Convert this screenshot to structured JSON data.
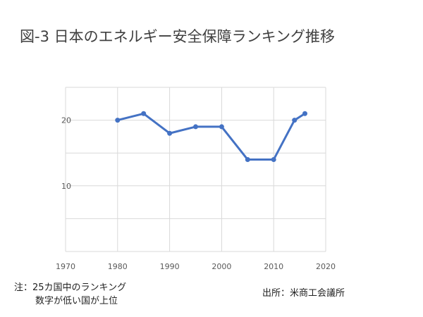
{
  "title": "図-3 日本のエネルギー安全保障ランキング推移",
  "note": {
    "line1": "注：25カ国中のランキング",
    "line2": "数字が低い国が上位"
  },
  "source": "出所：米商工会議所",
  "colors": {
    "series": "#4472c4",
    "grid": "#d9d9d9",
    "text": "#595959"
  },
  "chart_data": {
    "type": "line",
    "title": "",
    "xlabel": "",
    "ylabel": "",
    "xlim": [
      1970,
      2020
    ],
    "ylim": [
      0,
      25
    ],
    "x_ticks": [
      1970,
      1980,
      1990,
      2000,
      2010,
      2020
    ],
    "y_ticks": [
      10,
      20
    ],
    "grid": true,
    "legend": "none",
    "series": [
      {
        "x": [
          1980,
          1985,
          1990,
          1995,
          2000,
          2005,
          2010,
          2014,
          2016
        ],
        "y": [
          20,
          21,
          18,
          19,
          19,
          14,
          14,
          20,
          21
        ]
      }
    ]
  }
}
